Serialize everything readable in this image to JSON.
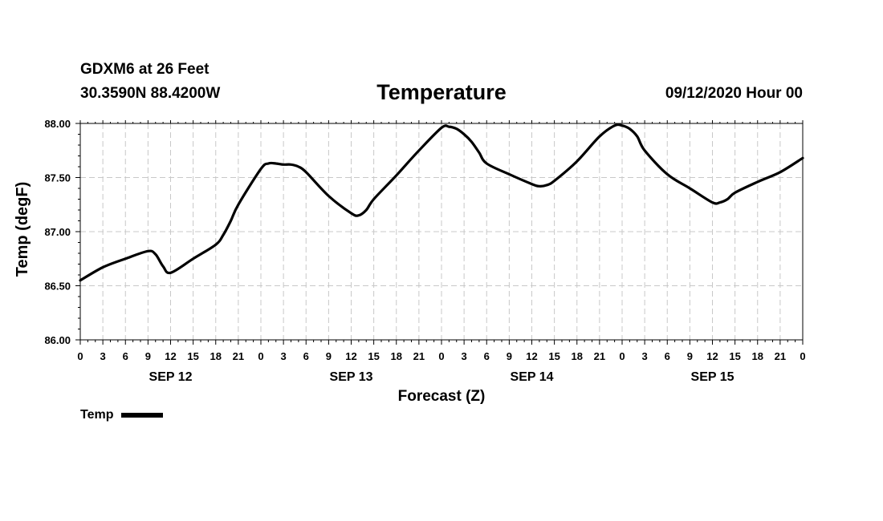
{
  "header": {
    "station": "GDXM6 at 26 Feet",
    "location": "30.3590N 88.4200W",
    "title": "Temperature",
    "issued": "09/12/2020 Hour 00"
  },
  "chart_data": {
    "type": "line",
    "title": "Temperature",
    "xlabel": "Forecast (Z)",
    "ylabel": "Temp (degF)",
    "xlim": [
      0,
      96
    ],
    "ylim": [
      86.0,
      88.0
    ],
    "y_ticks": [
      "86.00",
      "86.50",
      "87.00",
      "87.50",
      "88.00"
    ],
    "x_tick_labels": [
      "0",
      "3",
      "6",
      "9",
      "12",
      "15",
      "18",
      "21",
      "0",
      "3",
      "6",
      "9",
      "12",
      "15",
      "18",
      "21",
      "0",
      "3",
      "6",
      "9",
      "12",
      "15",
      "18",
      "21",
      "0",
      "3",
      "6",
      "9",
      "12",
      "15",
      "18",
      "21",
      "0"
    ],
    "day_labels": [
      {
        "hour": 12,
        "label": "SEP 12"
      },
      {
        "hour": 36,
        "label": "SEP 13"
      },
      {
        "hour": 60,
        "label": "SEP 14"
      },
      {
        "hour": 84,
        "label": "SEP 15"
      }
    ],
    "grid": true,
    "legend_position": "bottom-left",
    "series": [
      {
        "name": "Temp",
        "color": "#000000",
        "x": [
          0,
          3,
          6,
          9,
          10,
          11,
          12,
          15,
          18,
          19,
          20,
          21,
          24,
          25,
          26,
          27,
          28,
          29,
          30,
          33,
          36,
          37,
          38,
          39,
          42,
          45,
          48,
          49,
          50,
          51,
          52,
          53,
          54,
          57,
          60,
          61,
          62,
          63,
          66,
          69,
          71,
          72,
          73,
          74,
          75,
          78,
          81,
          84,
          85,
          86,
          87,
          90,
          93,
          96
        ],
        "y": [
          86.55,
          86.67,
          86.75,
          86.82,
          86.79,
          86.68,
          86.62,
          86.75,
          86.88,
          86.97,
          87.1,
          87.25,
          87.58,
          87.63,
          87.63,
          87.62,
          87.62,
          87.6,
          87.55,
          87.33,
          87.17,
          87.15,
          87.2,
          87.3,
          87.52,
          87.75,
          87.96,
          87.97,
          87.95,
          87.9,
          87.83,
          87.73,
          87.63,
          87.53,
          87.44,
          87.42,
          87.43,
          87.47,
          87.65,
          87.88,
          87.98,
          87.98,
          87.95,
          87.88,
          87.75,
          87.53,
          87.4,
          87.27,
          87.27,
          87.3,
          87.36,
          87.46,
          87.55,
          87.68
        ]
      }
    ]
  },
  "legend": {
    "label": "Temp",
    "color": "#000000"
  }
}
